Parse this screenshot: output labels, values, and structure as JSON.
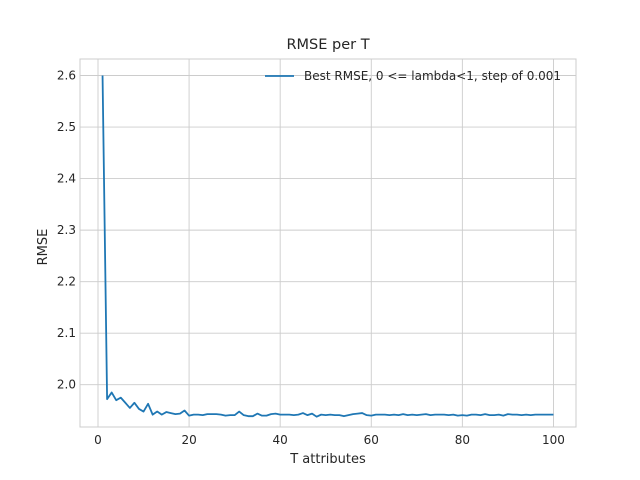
{
  "chart_data": {
    "type": "line",
    "title": "RMSE per T",
    "xlabel": "T attributes",
    "ylabel": "RMSE",
    "xlim": [
      -3.95,
      104.95
    ],
    "ylim": [
      1.918,
      2.632
    ],
    "xticks": [
      0,
      20,
      40,
      60,
      80,
      100
    ],
    "yticks": [
      2.0,
      2.1,
      2.2,
      2.3,
      2.4,
      2.5,
      2.6
    ],
    "ytick_labels": [
      "2.0",
      "2.1",
      "2.2",
      "2.3",
      "2.4",
      "2.5",
      "2.6"
    ],
    "grid": true,
    "legend_position": "top-right",
    "colors": {
      "line": "#1f77b4",
      "grid": "#cccccc",
      "spine": "#cccccc"
    },
    "series": [
      {
        "name": "Best RMSE, 0 <= lambda<1, step of 0.001",
        "x": [
          1,
          2,
          3,
          4,
          5,
          6,
          7,
          8,
          9,
          10,
          11,
          12,
          13,
          14,
          15,
          16,
          17,
          18,
          19,
          20,
          21,
          22,
          23,
          24,
          25,
          26,
          27,
          28,
          29,
          30,
          31,
          32,
          33,
          34,
          35,
          36,
          37,
          38,
          39,
          40,
          41,
          42,
          43,
          44,
          45,
          46,
          47,
          48,
          49,
          50,
          51,
          52,
          53,
          54,
          55,
          56,
          57,
          58,
          59,
          60,
          61,
          62,
          63,
          64,
          65,
          66,
          67,
          68,
          69,
          70,
          71,
          72,
          73,
          74,
          75,
          76,
          77,
          78,
          79,
          80,
          81,
          82,
          83,
          84,
          85,
          86,
          87,
          88,
          89,
          90,
          91,
          92,
          93,
          94,
          95,
          96,
          97,
          98,
          99,
          100
        ],
        "y": [
          2.6,
          1.972,
          1.985,
          1.97,
          1.975,
          1.965,
          1.955,
          1.965,
          1.953,
          1.948,
          1.963,
          1.942,
          1.948,
          1.942,
          1.947,
          1.945,
          1.943,
          1.944,
          1.95,
          1.94,
          1.942,
          1.942,
          1.941,
          1.943,
          1.943,
          1.943,
          1.942,
          1.94,
          1.941,
          1.941,
          1.948,
          1.941,
          1.939,
          1.939,
          1.944,
          1.94,
          1.94,
          1.943,
          1.944,
          1.942,
          1.942,
          1.942,
          1.941,
          1.942,
          1.945,
          1.941,
          1.944,
          1.938,
          1.942,
          1.941,
          1.942,
          1.941,
          1.941,
          1.939,
          1.941,
          1.943,
          1.944,
          1.945,
          1.941,
          1.94,
          1.942,
          1.942,
          1.942,
          1.941,
          1.942,
          1.941,
          1.943,
          1.941,
          1.942,
          1.941,
          1.942,
          1.943,
          1.941,
          1.942,
          1.942,
          1.942,
          1.941,
          1.942,
          1.94,
          1.941,
          1.94,
          1.942,
          1.942,
          1.941,
          1.943,
          1.941,
          1.941,
          1.942,
          1.94,
          1.943,
          1.942,
          1.942,
          1.941,
          1.942,
          1.941,
          1.942,
          1.942,
          1.942,
          1.942,
          1.942
        ]
      }
    ]
  }
}
